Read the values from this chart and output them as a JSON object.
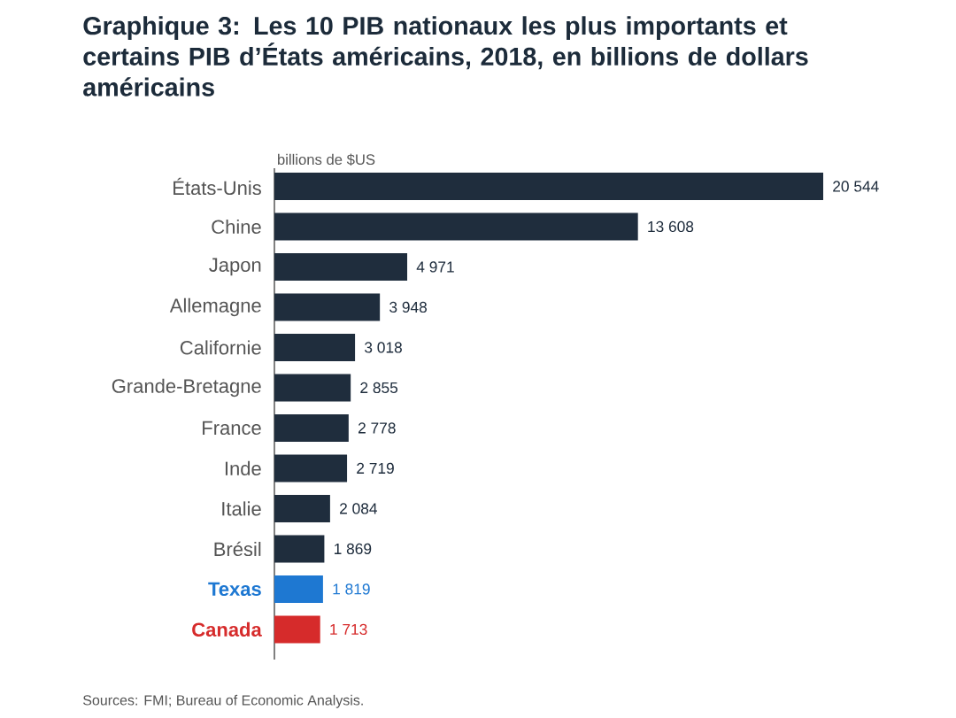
{
  "chart_data": {
    "type": "bar",
    "orientation": "horizontal",
    "title": "Graphique 3: Les 10 PIB nationaux les plus importants et certains PIB d’États américains, 2018, en billions de dollars américains",
    "xlabel": "billions de $US",
    "categories": [
      "États-Unis",
      "Chine",
      "Japon",
      "Allemagne",
      "Californie",
      "Grande-Bretagne",
      "France",
      "Inde",
      "Italie",
      "Brésil",
      "Texas",
      "Canada"
    ],
    "values": [
      20544,
      13608,
      4971,
      3948,
      3018,
      2855,
      2778,
      2719,
      2084,
      1869,
      1819,
      1713
    ],
    "value_labels": [
      "20 544",
      "13 608",
      "4 971",
      "3 948",
      "3 018",
      "2 855",
      "2 778",
      "2 719",
      "2 084",
      "1 869",
      "1 819",
      "1 713"
    ],
    "colors": [
      "#1f2d3d",
      "#1f2d3d",
      "#1f2d3d",
      "#1f2d3d",
      "#1f2d3d",
      "#1f2d3d",
      "#1f2d3d",
      "#1f2d3d",
      "#1f2d3d",
      "#1f2d3d",
      "#1e78d2",
      "#d62b2b"
    ],
    "annotations": [
      "Sources: FMI; Bureau of Economic Analysis."
    ]
  }
}
